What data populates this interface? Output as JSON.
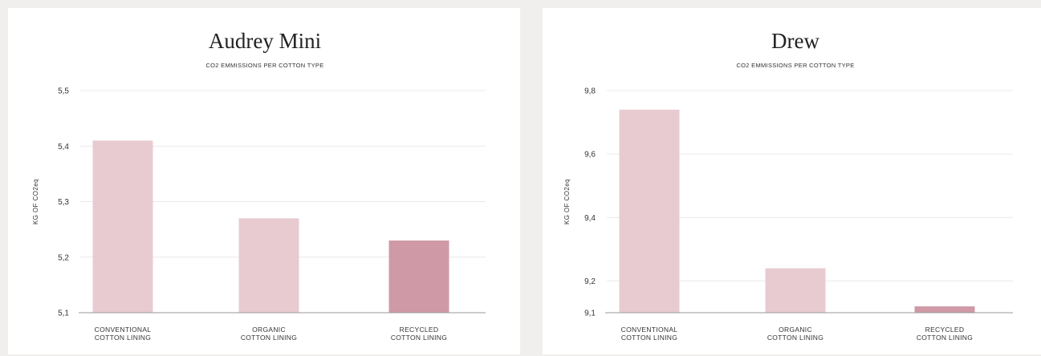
{
  "colors": {
    "bar_light": "#e8cbd0",
    "bar_highlight": "#cf9aa6",
    "grid": "#e9e9e9",
    "axis": "#9a9a9a"
  },
  "chart_data": [
    {
      "type": "bar",
      "title": "Audrey Mini",
      "subtitle": "CO2 EMMISSIONS PER COTTON TYPE",
      "ylabel": "KG OF CO2eq",
      "xlabel": "",
      "categories": [
        [
          "CONVENTIONAL",
          "COTTON LINING"
        ],
        [
          "ORGANIC",
          "COTTON LINING"
        ],
        [
          "RECYCLED",
          "COTTON LINING"
        ]
      ],
      "values": [
        5.41,
        5.27,
        5.23
      ],
      "highlight_index": 2,
      "ylim": [
        5.1,
        5.5
      ],
      "yticks": [
        5.1,
        5.2,
        5.3,
        5.4,
        5.5
      ],
      "ytick_labels": [
        "5,1",
        "5,2",
        "5,3",
        "5,4",
        "5,5"
      ],
      "grid": true,
      "legend": "none"
    },
    {
      "type": "bar",
      "title": "Drew",
      "subtitle": "CO2 EMMISSIONS PER COTTON TYPE",
      "ylabel": "KG OF CO2eq",
      "xlabel": "",
      "categories": [
        [
          "CONVENTIONAL",
          "COTTON LINING"
        ],
        [
          "ORGANIC",
          "COTTON LINING"
        ],
        [
          "RECYCLED",
          "COTTON LINING"
        ]
      ],
      "values": [
        9.74,
        9.24,
        9.12
      ],
      "highlight_index": 2,
      "ylim": [
        9.1,
        9.8
      ],
      "yticks": [
        9.1,
        9.2,
        9.4,
        9.6,
        9.8
      ],
      "ytick_labels": [
        "9,1",
        "9,2",
        "9,4",
        "9,6",
        "9,8"
      ],
      "grid": true,
      "legend": "none"
    }
  ]
}
